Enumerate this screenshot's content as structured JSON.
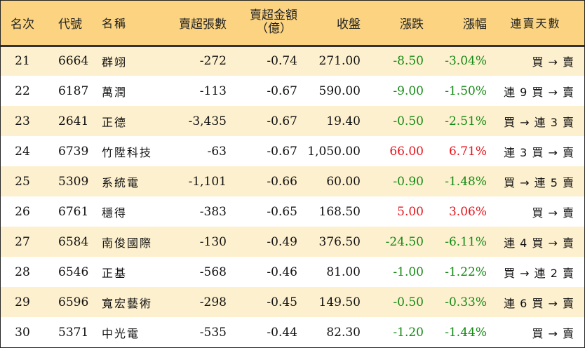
{
  "headers": {
    "rank": "名次",
    "code": "代號",
    "name": "名稱",
    "lots": "賣超張數",
    "amount_line1": "賣超金額",
    "amount_line2": "（億）",
    "close": "收盤",
    "change": "漲跌",
    "change_pct": "漲幅",
    "streak": "連賣天數"
  },
  "colors": {
    "header_bg": "#fbd381",
    "alt_row_bg": "#fdf0ce",
    "down": "#148a14",
    "up": "#e5131a"
  },
  "rows": [
    {
      "rank": "21",
      "code": "6664",
      "name": "群翊",
      "lots": "-272",
      "amount": "-0.74",
      "close": "271.00",
      "change": "-8.50",
      "change_pct": "-3.04%",
      "direction": "down",
      "streak": "買 → 賣"
    },
    {
      "rank": "22",
      "code": "6187",
      "name": "萬潤",
      "lots": "-113",
      "amount": "-0.67",
      "close": "590.00",
      "change": "-9.00",
      "change_pct": "-1.50%",
      "direction": "down",
      "streak": "連 9 買 → 賣"
    },
    {
      "rank": "23",
      "code": "2641",
      "name": "正德",
      "lots": "-3,435",
      "amount": "-0.67",
      "close": "19.40",
      "change": "-0.50",
      "change_pct": "-2.51%",
      "direction": "down",
      "streak": "買 → 連 3 賣"
    },
    {
      "rank": "24",
      "code": "6739",
      "name": "竹陞科技",
      "lots": "-63",
      "amount": "-0.67",
      "close": "1,050.00",
      "change": "66.00",
      "change_pct": "6.71%",
      "direction": "up",
      "streak": "連 3 買 → 賣"
    },
    {
      "rank": "25",
      "code": "5309",
      "name": "系統電",
      "lots": "-1,101",
      "amount": "-0.66",
      "close": "60.00",
      "change": "-0.90",
      "change_pct": "-1.48%",
      "direction": "down",
      "streak": "買 → 連 5 賣"
    },
    {
      "rank": "26",
      "code": "6761",
      "name": "穩得",
      "lots": "-383",
      "amount": "-0.65",
      "close": "168.50",
      "change": "5.00",
      "change_pct": "3.06%",
      "direction": "up",
      "streak": "買 → 賣"
    },
    {
      "rank": "27",
      "code": "6584",
      "name": "南俊國際",
      "lots": "-130",
      "amount": "-0.49",
      "close": "376.50",
      "change": "-24.50",
      "change_pct": "-6.11%",
      "direction": "down",
      "streak": "連 4 買 → 賣"
    },
    {
      "rank": "28",
      "code": "6546",
      "name": "正基",
      "lots": "-568",
      "amount": "-0.46",
      "close": "81.00",
      "change": "-1.00",
      "change_pct": "-1.22%",
      "direction": "down",
      "streak": "買 → 連 2 賣"
    },
    {
      "rank": "29",
      "code": "6596",
      "name": "寬宏藝術",
      "lots": "-298",
      "amount": "-0.45",
      "close": "149.50",
      "change": "-0.50",
      "change_pct": "-0.33%",
      "direction": "down",
      "streak": "連 6 買 → 賣"
    },
    {
      "rank": "30",
      "code": "5371",
      "name": "中光電",
      "lots": "-535",
      "amount": "-0.44",
      "close": "82.30",
      "change": "-1.20",
      "change_pct": "-1.44%",
      "direction": "down",
      "streak": "買 → 賣"
    }
  ]
}
